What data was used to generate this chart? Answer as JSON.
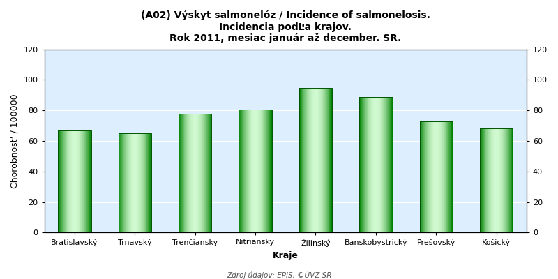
{
  "title": "(A02) Výskyt salmonelóz / Incidence of salmonelosis.\nIncidencia podĿa krajov.\nRok 2011, mesiac január až december. SR.",
  "categories": [
    "Bratislavský",
    "Trnavský",
    "Trenčiansky",
    "Nitriansky",
    "Žilinský",
    "Banskobystrický",
    "Prešovský",
    "Košický"
  ],
  "values": [
    67.0,
    65.0,
    78.0,
    80.45,
    94.81,
    88.77,
    73.0,
    68.0
  ],
  "xlabel": "Kraje",
  "ylabel": "Chorobnost’ / 100000",
  "ylim": [
    0,
    120
  ],
  "yticks": [
    0,
    20,
    40,
    60,
    80,
    100,
    120
  ],
  "source": "Zdroj údajov: EPIS, ©ÚVZ SR",
  "fig_bg": "#ffffff",
  "plot_bg": "#ddeeff",
  "title_fontsize": 10,
  "axis_label_fontsize": 9,
  "tick_fontsize": 8,
  "source_fontsize": 7.5
}
